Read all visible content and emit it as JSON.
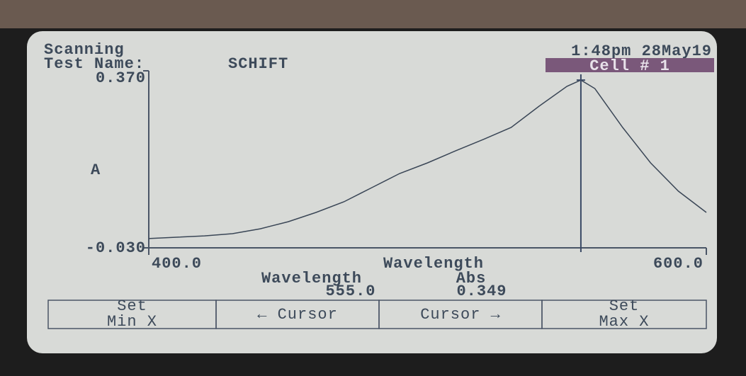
{
  "screen": {
    "status": "Scanning",
    "test_label": "Test Name:",
    "test_name": "SCHIFT",
    "clock": "1:48pm 28May19",
    "cell": "Cell # 1",
    "readout_headers": [
      "Wavelength",
      "Abs"
    ],
    "buttons": [
      [
        "Set",
        "Min X"
      ],
      [
        "← Cursor"
      ],
      [
        "Cursor →"
      ],
      [
        "Set",
        "Max X"
      ]
    ]
  },
  "chart_data": {
    "type": "line",
    "x_label": "Wavelength",
    "y_label": "A",
    "x": [
      400,
      410,
      420,
      430,
      440,
      450,
      460,
      470,
      480,
      490,
      500,
      510,
      520,
      530,
      540,
      550,
      555,
      560,
      570,
      580,
      590,
      600
    ],
    "values": [
      -0.009,
      -0.006,
      -0.003,
      0.002,
      0.013,
      0.029,
      0.05,
      0.074,
      0.106,
      0.138,
      0.162,
      0.189,
      0.215,
      0.242,
      0.29,
      0.335,
      0.349,
      0.33,
      0.242,
      0.162,
      0.098,
      0.05
    ],
    "color": "#3a4656",
    "xlim": [
      400,
      600
    ],
    "ylim": [
      -0.03,
      0.37
    ],
    "xticks": [
      {
        "value": 400,
        "label": "400.0"
      },
      {
        "value": 600,
        "label": "600.0"
      }
    ],
    "yticks": [
      {
        "value": -0.03,
        "label": "-0.030"
      },
      {
        "value": 0.37,
        "label": "0.370"
      }
    ],
    "cursor": {
      "value": 555,
      "label": "555.0"
    },
    "cursor_abs": 0.349
  }
}
